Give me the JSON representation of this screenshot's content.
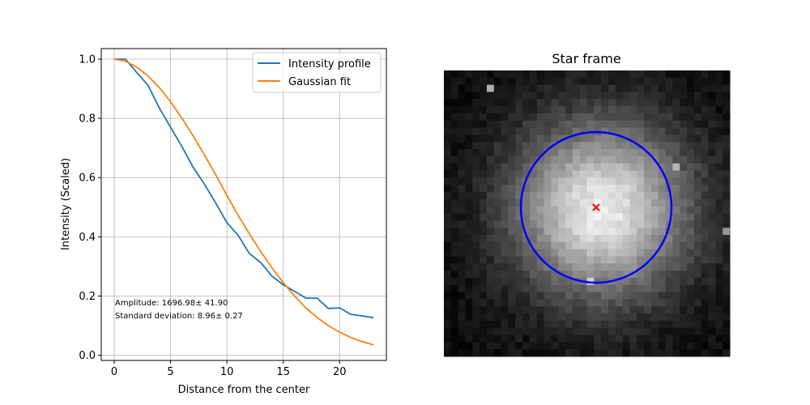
{
  "chart_data": [
    {
      "type": "line",
      "title": "",
      "xlabel": "Distance from the center",
      "ylabel": "Intensity (Scaled)",
      "xlim": [
        -1.15,
        24.15
      ],
      "ylim": [
        -0.0175,
        1.0355
      ],
      "xticks": [
        0,
        5,
        10,
        15,
        20
      ],
      "xtick_labels": [
        "0",
        "5",
        "10",
        "15",
        "20"
      ],
      "yticks": [
        0.0,
        0.2,
        0.4,
        0.6,
        0.8,
        1.0
      ],
      "ytick_labels": [
        "0.0",
        "0.2",
        "0.4",
        "0.6",
        "0.8",
        "1.0"
      ],
      "grid": true,
      "legend_position": "upper right",
      "x": [
        0,
        1,
        2,
        3,
        4,
        5,
        6,
        7,
        8,
        9,
        10,
        11,
        12,
        13,
        14,
        15,
        16,
        17,
        18,
        19,
        20,
        21,
        22,
        23
      ],
      "series": [
        {
          "name": "Intensity profile",
          "color": "#1f77b4",
          "values": [
            1.0,
            1.0,
            0.955,
            0.912,
            0.835,
            0.77,
            0.705,
            0.635,
            0.578,
            0.515,
            0.448,
            0.405,
            0.343,
            0.313,
            0.267,
            0.238,
            0.216,
            0.193,
            0.193,
            0.158,
            0.16,
            0.138,
            0.133,
            0.127
          ]
        },
        {
          "name": "Gaussian fit",
          "color": "#ff7f0e",
          "values": [
            1.0,
            0.993,
            0.973,
            0.943,
            0.904,
            0.856,
            0.801,
            0.741,
            0.677,
            0.61,
            0.54,
            0.472,
            0.41,
            0.35,
            0.295,
            0.245,
            0.2,
            0.16,
            0.128,
            0.1,
            0.078,
            0.06,
            0.046,
            0.035
          ]
        }
      ],
      "annotations": [
        "Amplitude: 1696.98± 41.90",
        "Standard deviation: 8.96± 0.27"
      ]
    },
    {
      "type": "heatmap",
      "title": "Star frame",
      "colormap": "gray",
      "grid_size": 40,
      "center_marker": "x",
      "center_color": "#ff0000",
      "circle_color": "#0000ff",
      "axes_visible": false
    }
  ]
}
